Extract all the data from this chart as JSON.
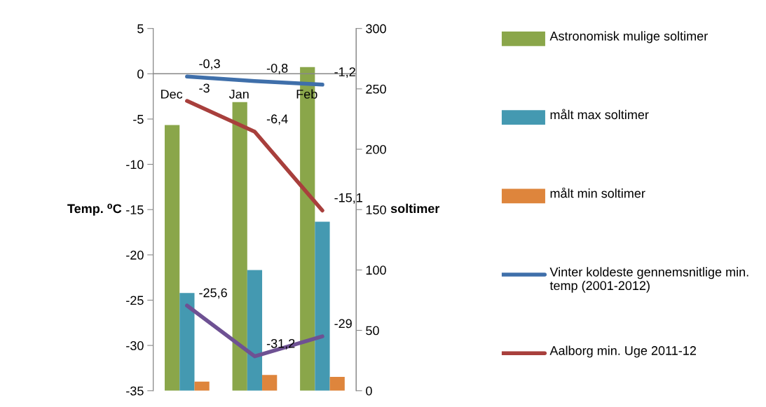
{
  "chart_data": {
    "type": "bar",
    "categories": [
      "Dec",
      "Jan",
      "Feb"
    ],
    "ylabel": "Temp. ⁰C",
    "y2label": "soltimer",
    "ylim": [
      -35,
      5
    ],
    "yticks": [
      -35,
      -30,
      -25,
      -20,
      -15,
      -10,
      -5,
      0,
      5
    ],
    "y2lim": [
      0,
      300
    ],
    "y2ticks": [
      0,
      50,
      100,
      150,
      200,
      250,
      300
    ],
    "grid": false,
    "legend": "right",
    "series": [
      {
        "name": "Astronomisk mulige soltimer",
        "axis": "y2",
        "color": "#8aa64a",
        "values": [
          220,
          239,
          268
        ]
      },
      {
        "name": "målt max soltimer",
        "axis": "y2",
        "color": "#4499b1",
        "values": [
          81,
          100,
          140
        ]
      },
      {
        "name": "målt min soltimer",
        "axis": "y2",
        "color": "#de853c",
        "values": [
          7.5,
          13,
          11.5
        ]
      },
      {
        "name": "Vinter koldeste gennemsnitlige min. temp (2001-2012)",
        "type": "line",
        "color": "#3f6faa",
        "values": [
          -0.3,
          -0.8,
          -1.2
        ],
        "value_labels": [
          "-0,3",
          "-0,8",
          "-1,2"
        ]
      },
      {
        "name": "Aalborg min. Uge 2011-12",
        "type": "line",
        "color": "#a83f3c",
        "values": [
          -3,
          -6.4,
          -15.1
        ],
        "value_labels": [
          "-3",
          "-6,4",
          "-15,1"
        ]
      },
      {
        "type": "line",
        "color": "#6e5193",
        "values": [
          -25.6,
          -31.2,
          -29
        ],
        "value_labels": [
          "-25,6",
          "-31,2",
          "-29"
        ]
      }
    ]
  }
}
